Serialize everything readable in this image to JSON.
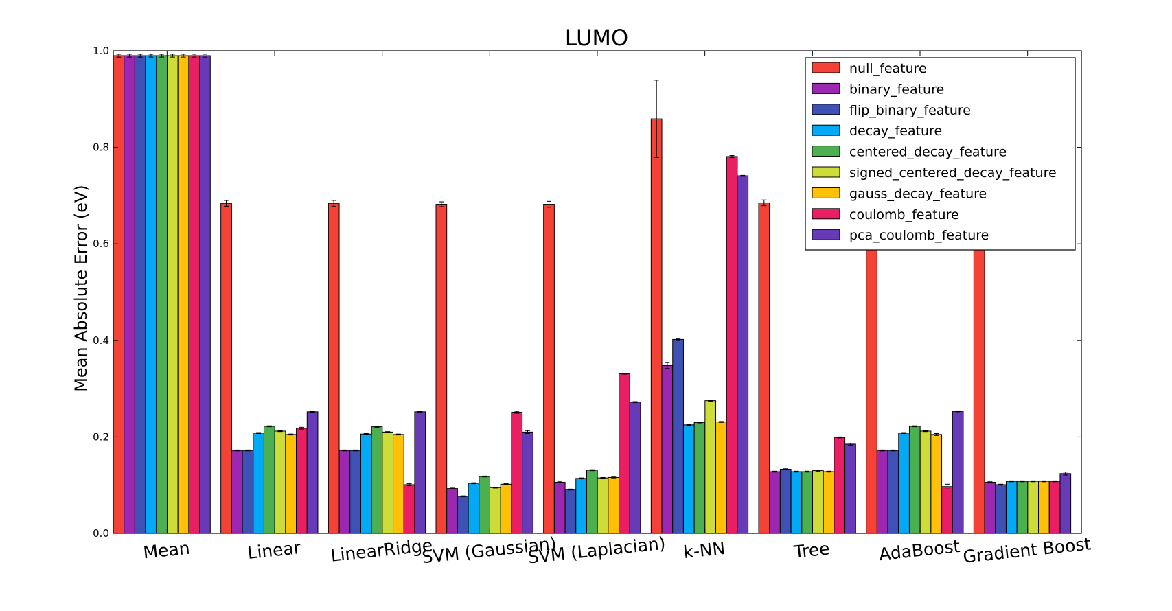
{
  "chart_data": {
    "type": "bar",
    "title": "LUMO",
    "xlabel": "",
    "ylabel": "Mean Absolute Error (eV)",
    "ylim": [
      0,
      1.0
    ],
    "yticks": [
      "0.0",
      "0.2",
      "0.4",
      "0.6",
      "0.8",
      "1.0"
    ],
    "grid": false,
    "legend_position": "top-right",
    "categories": [
      "Mean",
      "Linear",
      "LinearRidge",
      "SVM (Gaussian)",
      "SVM (Laplacian)",
      "k-NN",
      "Tree",
      "AdaBoost",
      "Gradient Boost"
    ],
    "series": [
      {
        "name": "null_feature",
        "color": "#f44336",
        "values": [
          0.99,
          0.684,
          0.684,
          0.682,
          0.682,
          0.859,
          0.685,
          0.685,
          0.69
        ],
        "errors": [
          0.003,
          0.006,
          0.006,
          0.005,
          0.006,
          0.08,
          0.006,
          0.006,
          0.006
        ]
      },
      {
        "name": "binary_feature",
        "color": "#9c27b0",
        "values": [
          0.99,
          0.172,
          0.172,
          0.093,
          0.106,
          0.348,
          0.128,
          0.172,
          0.106
        ],
        "errors": [
          0.003,
          0.001,
          0.001,
          0.001,
          0.001,
          0.006,
          0.001,
          0.001,
          0.001
        ]
      },
      {
        "name": "flip_binary_feature",
        "color": "#3f51b5",
        "values": [
          0.99,
          0.172,
          0.172,
          0.077,
          0.091,
          0.402,
          0.133,
          0.172,
          0.101
        ],
        "errors": [
          0.003,
          0.001,
          0.001,
          0.001,
          0.001,
          0.001,
          0.001,
          0.001,
          0.001
        ]
      },
      {
        "name": "decay_feature",
        "color": "#03a9f4",
        "values": [
          0.99,
          0.208,
          0.206,
          0.104,
          0.114,
          0.225,
          0.128,
          0.208,
          0.108
        ],
        "errors": [
          0.003,
          0.001,
          0.001,
          0.001,
          0.001,
          0.001,
          0.001,
          0.001,
          0.001
        ]
      },
      {
        "name": "centered_decay_feature",
        "color": "#4caf50",
        "values": [
          0.99,
          0.222,
          0.221,
          0.118,
          0.131,
          0.23,
          0.128,
          0.222,
          0.108
        ],
        "errors": [
          0.003,
          0.001,
          0.001,
          0.001,
          0.001,
          0.001,
          0.001,
          0.001,
          0.001
        ]
      },
      {
        "name": "signed_centered_decay_feature",
        "color": "#cddc39",
        "values": [
          0.99,
          0.212,
          0.21,
          0.095,
          0.115,
          0.275,
          0.13,
          0.212,
          0.108
        ],
        "errors": [
          0.003,
          0.001,
          0.001,
          0.001,
          0.001,
          0.001,
          0.001,
          0.001,
          0.001
        ]
      },
      {
        "name": "gauss_decay_feature",
        "color": "#ffc107",
        "values": [
          0.99,
          0.205,
          0.205,
          0.102,
          0.116,
          0.231,
          0.128,
          0.205,
          0.108
        ],
        "errors": [
          0.003,
          0.001,
          0.001,
          0.001,
          0.001,
          0.001,
          0.001,
          0.002,
          0.001
        ]
      },
      {
        "name": "coulomb_feature",
        "color": "#e91e63",
        "values": [
          0.99,
          0.218,
          0.101,
          0.251,
          0.331,
          0.781,
          0.199,
          0.097,
          0.108
        ],
        "errors": [
          0.003,
          0.002,
          0.002,
          0.002,
          0.001,
          0.002,
          0.001,
          0.005,
          0.001
        ]
      },
      {
        "name": "pca_coulomb_feature",
        "color": "#673ab7",
        "values": [
          0.99,
          0.252,
          0.252,
          0.21,
          0.272,
          0.741,
          0.185,
          0.253,
          0.124
        ],
        "errors": [
          0.003,
          0.001,
          0.001,
          0.003,
          0.001,
          0.001,
          0.002,
          0.001,
          0.003
        ]
      }
    ]
  }
}
